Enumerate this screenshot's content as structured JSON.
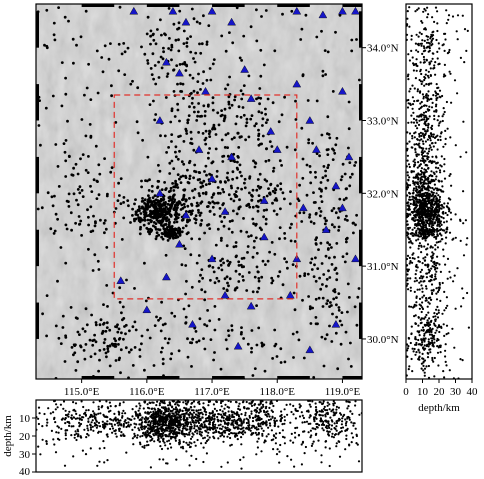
{
  "map": {
    "lon_range": [
      114.3,
      119.3
    ],
    "lat_range": [
      29.45,
      34.6
    ],
    "lon_ticks": [
      {
        "value": 115.0,
        "label": "115.0°E"
      },
      {
        "value": 116.0,
        "label": "116.0°E"
      },
      {
        "value": 117.0,
        "label": "117.0°E"
      },
      {
        "value": 118.0,
        "label": "118.0°E"
      },
      {
        "value": 119.0,
        "label": "119.0°E"
      }
    ],
    "lat_ticks": [
      {
        "value": 34.0,
        "label": "34.0°N"
      },
      {
        "value": 33.0,
        "label": "33.0°N"
      },
      {
        "value": 32.0,
        "label": "32.0°N"
      },
      {
        "value": 31.0,
        "label": "31.0°N"
      },
      {
        "value": 30.0,
        "label": "30.0°N"
      }
    ],
    "study_box": {
      "lon": [
        115.5,
        118.3
      ],
      "lat": [
        30.55,
        33.35
      ],
      "color": "#e0302a"
    },
    "terrain_background": "#cfcfcf",
    "event_color": "#000000",
    "station_color": "#1515c8",
    "stations": [
      [
        115.8,
        34.5
      ],
      [
        116.4,
        34.5
      ],
      [
        116.6,
        34.35
      ],
      [
        117.0,
        34.5
      ],
      [
        117.3,
        34.35
      ],
      [
        118.3,
        34.5
      ],
      [
        118.7,
        34.45
      ],
      [
        119.0,
        34.5
      ],
      [
        119.2,
        34.5
      ],
      [
        116.5,
        33.65
      ],
      [
        117.5,
        33.7
      ],
      [
        116.3,
        33.8
      ],
      [
        116.9,
        33.4
      ],
      [
        117.6,
        33.3
      ],
      [
        118.3,
        33.5
      ],
      [
        119.0,
        33.4
      ],
      [
        116.2,
        33.0
      ],
      [
        116.8,
        32.6
      ],
      [
        117.3,
        32.5
      ],
      [
        117.0,
        32.2
      ],
      [
        118.0,
        32.6
      ],
      [
        118.6,
        32.6
      ],
      [
        119.1,
        32.5
      ],
      [
        116.2,
        32.0
      ],
      [
        116.6,
        31.7
      ],
      [
        117.2,
        31.75
      ],
      [
        117.8,
        31.9
      ],
      [
        118.4,
        31.8
      ],
      [
        119.0,
        31.8
      ],
      [
        116.5,
        31.3
      ],
      [
        117.0,
        31.1
      ],
      [
        117.8,
        31.4
      ],
      [
        118.3,
        31.1
      ],
      [
        119.2,
        31.1
      ],
      [
        116.3,
        30.85
      ],
      [
        117.2,
        30.6
      ],
      [
        117.6,
        30.45
      ],
      [
        118.2,
        30.6
      ],
      [
        118.9,
        30.2
      ],
      [
        116.7,
        30.2
      ],
      [
        117.4,
        29.9
      ],
      [
        118.5,
        29.85
      ],
      [
        116.0,
        30.4
      ],
      [
        115.6,
        30.8
      ],
      [
        118.9,
        32.1
      ],
      [
        118.75,
        31.5
      ],
      [
        117.9,
        32.85
      ],
      [
        118.5,
        33.0
      ]
    ],
    "clusters": [
      {
        "lon": 116.2,
        "lat": 31.75,
        "slon": 0.32,
        "slat": 0.22,
        "n": 330
      },
      {
        "lon": 116.4,
        "lat": 31.45,
        "slon": 0.12,
        "slat": 0.07,
        "n": 90
      },
      {
        "lon": 116.7,
        "lat": 32.0,
        "slon": 0.55,
        "slat": 0.45,
        "n": 180
      },
      {
        "lon": 117.6,
        "lat": 32.0,
        "slon": 0.6,
        "slat": 0.55,
        "n": 130
      },
      {
        "lon": 117.2,
        "lat": 33.0,
        "slon": 0.9,
        "slat": 0.45,
        "n": 150
      },
      {
        "lon": 116.4,
        "lat": 33.9,
        "slon": 0.9,
        "slat": 0.4,
        "n": 100
      },
      {
        "lon": 115.4,
        "lat": 30.0,
        "slon": 0.55,
        "slat": 0.35,
        "n": 90
      },
      {
        "lon": 118.8,
        "lat": 31.9,
        "slon": 0.35,
        "slat": 0.9,
        "n": 110
      },
      {
        "lon": 115.1,
        "lat": 31.8,
        "slon": 0.5,
        "slat": 0.7,
        "n": 80
      },
      {
        "lon": 117.4,
        "lat": 31.0,
        "slon": 0.7,
        "slat": 0.35,
        "n": 90
      },
      {
        "lon": 116.8,
        "lat": 30.0,
        "slon": 1.5,
        "slat": 0.4,
        "n": 60
      },
      {
        "lon": 118.8,
        "lat": 30.4,
        "slon": 0.35,
        "slat": 0.6,
        "n": 50
      }
    ]
  },
  "depth_side": {
    "ticks": [
      {
        "value": 0,
        "label": "0"
      },
      {
        "value": 10,
        "label": "10"
      },
      {
        "value": 20,
        "label": "20"
      },
      {
        "value": 30,
        "label": "30"
      },
      {
        "value": 40,
        "label": "40"
      }
    ],
    "label": "depth/km",
    "range": [
      0,
      40
    ]
  },
  "depth_bottom": {
    "ticks": [
      {
        "value": 10,
        "label": "10"
      },
      {
        "value": 20,
        "label": "20"
      },
      {
        "value": 30,
        "label": "30"
      },
      {
        "value": 40,
        "label": "40"
      }
    ],
    "label": "depth/km",
    "range": [
      0,
      40
    ]
  }
}
